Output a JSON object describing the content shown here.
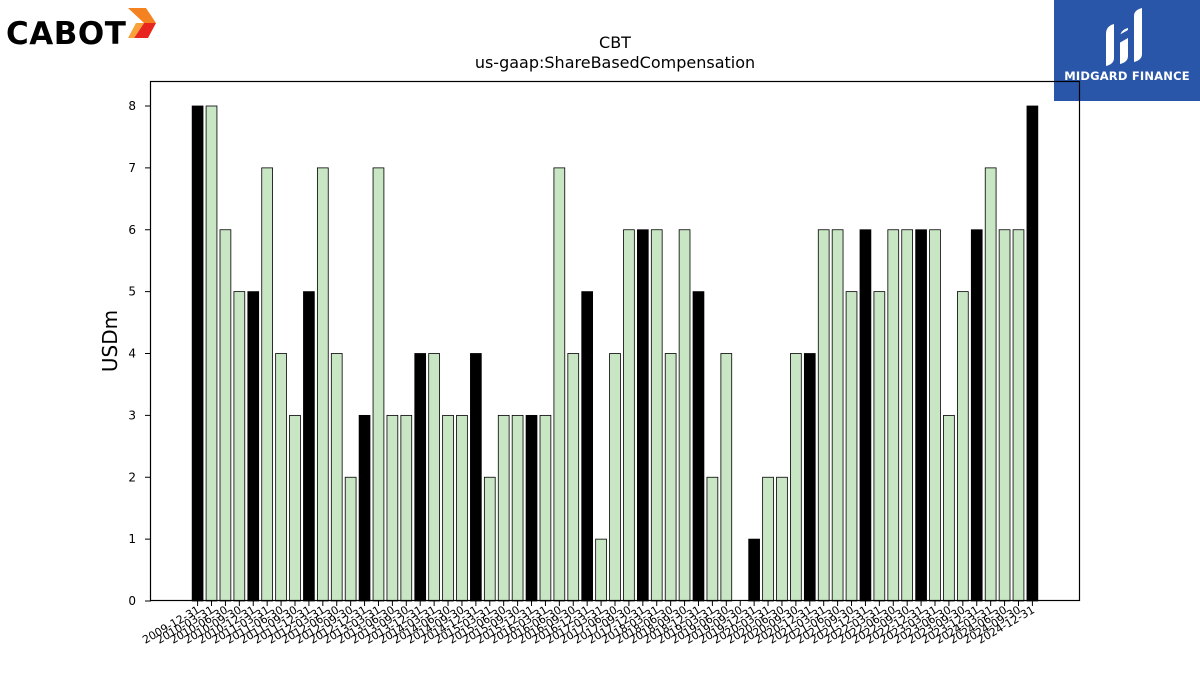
{
  "logos": {
    "left_name": "CABOT",
    "right_name": "MIDGARD FINANCE"
  },
  "colors": {
    "highlight_bar": "#000000",
    "normal_bar": "#c8e6c4",
    "bar_edge": "#000000",
    "brand_blue": "#2a56aa"
  },
  "chart_data": {
    "type": "bar",
    "title": "CBT",
    "subtitle": "us-gaap:ShareBasedCompensation",
    "xlabel": "",
    "ylabel": "USDm",
    "ylim": [
      0,
      8
    ],
    "yticks": [
      0,
      1,
      2,
      3,
      4,
      5,
      6,
      7,
      8
    ],
    "grid": false,
    "legend": "none",
    "categories": [
      "2009-12-31",
      "2010-03-31",
      "2010-06-30",
      "2010-09-30",
      "2010-12-31",
      "2011-03-31",
      "2011-06-30",
      "2011-09-30",
      "2011-12-31",
      "2012-03-31",
      "2012-06-30",
      "2012-09-30",
      "2012-12-31",
      "2013-03-31",
      "2013-06-30",
      "2013-09-30",
      "2013-12-31",
      "2014-03-31",
      "2014-06-30",
      "2014-09-30",
      "2014-12-31",
      "2015-03-31",
      "2015-06-30",
      "2015-09-30",
      "2015-12-31",
      "2016-03-31",
      "2016-06-30",
      "2016-09-30",
      "2016-12-31",
      "2017-03-31",
      "2017-06-30",
      "2017-09-30",
      "2017-12-31",
      "2018-03-31",
      "2018-06-30",
      "2018-09-30",
      "2018-12-31",
      "2019-03-31",
      "2019-06-30",
      "2019-09-30",
      "2019-12-31",
      "2020-03-31",
      "2020-06-30",
      "2020-09-30",
      "2020-12-31",
      "2021-03-31",
      "2021-06-30",
      "2021-09-30",
      "2021-12-31",
      "2022-03-31",
      "2022-06-30",
      "2022-09-30",
      "2022-12-31",
      "2023-03-31",
      "2023-06-30",
      "2023-09-30",
      "2023-12-31",
      "2024-03-31",
      "2024-06-30",
      "2024-09-30",
      "2024-12-31"
    ],
    "values": [
      8,
      8,
      6,
      5,
      5,
      7,
      4,
      3,
      5,
      7,
      4,
      2,
      3,
      7,
      3,
      3,
      4,
      4,
      3,
      3,
      4,
      2,
      3,
      3,
      3,
      3,
      7,
      4,
      5,
      1,
      4,
      6,
      6,
      6,
      4,
      6,
      5,
      2,
      4,
      0,
      1,
      2,
      2,
      4,
      4,
      6,
      6,
      5,
      6,
      5,
      6,
      6,
      6,
      6,
      3,
      5,
      6,
      7,
      6,
      6,
      8
    ],
    "highlighted_categories": [
      "2009-12-31",
      "2010-12-31",
      "2011-12-31",
      "2012-12-31",
      "2013-12-31",
      "2014-12-31",
      "2015-12-31",
      "2016-12-31",
      "2017-12-31",
      "2018-12-31",
      "2019-12-31",
      "2020-12-31",
      "2021-12-31",
      "2022-12-31",
      "2023-12-31",
      "2024-12-31"
    ]
  }
}
